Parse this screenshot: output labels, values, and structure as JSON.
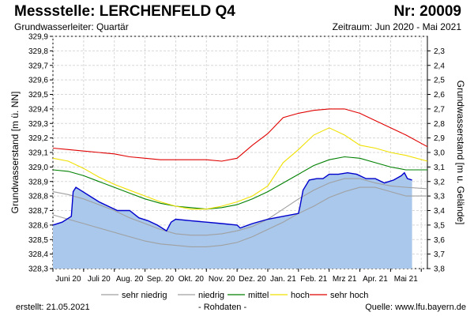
{
  "header": {
    "title": "Messstelle: LERCHENFELD Q4",
    "number": "Nr: 20009",
    "subtitle": "Grundwasserleiter: Quartär",
    "period": "Zeitraum: Jun 2020 - Mai 2021"
  },
  "footer": {
    "created": "erstellt:  21.05.2021",
    "note": "- Rohdaten -",
    "source": "Quelle:  www.lfu.bayern.de"
  },
  "colors": {
    "measured_line": "#0000cc",
    "measured_fill": "#a9c8ec",
    "sehr_niedrig": "#a0a0a0",
    "niedrig": "#a0a0a0",
    "mittel": "#008000",
    "hoch": "#f0e000",
    "sehr_hoch": "#e00000",
    "grid": "#d8d8d8"
  },
  "chart_data": {
    "type": "line",
    "ylabel": "Grundwasserstand [m ü. NN]",
    "ylabel_right": "Grundwasserstand [m u. Gelände]",
    "ylim": [
      328.3,
      329.9
    ],
    "ylim_right": [
      2.2,
      3.8
    ],
    "yticks": [
      "328,3",
      "328,4",
      "328,5",
      "328,6",
      "328,7",
      "328,8",
      "328,9",
      "329,0",
      "329,1",
      "329,2",
      "329,3",
      "329,4",
      "329,5",
      "329,6",
      "329,7",
      "329,8",
      "329,9"
    ],
    "yticks_right": [
      "2,3",
      "2,4",
      "2,5",
      "2,6",
      "2,7",
      "2,8",
      "2,9",
      "3,0",
      "3,1",
      "3,2",
      "3,3",
      "3,4",
      "3,5",
      "3,6",
      "3,7",
      "3,8"
    ],
    "x_range_months": [
      0,
      12.2
    ],
    "x_ticks": [
      {
        "label": "Juni 20",
        "x": 0.5
      },
      {
        "label": "Juli 20",
        "x": 1.5
      },
      {
        "label": "Aug. 20",
        "x": 2.5
      },
      {
        "label": "Sep. 20",
        "x": 3.5
      },
      {
        "label": "Okt. 20",
        "x": 4.5
      },
      {
        "label": "Nov. 20",
        "x": 5.5
      },
      {
        "label": "Dez. 20",
        "x": 6.5
      },
      {
        "label": "Jan. 21",
        "x": 7.5
      },
      {
        "label": "Feb. 21",
        "x": 8.5
      },
      {
        "label": "Mrz 21",
        "x": 9.5
      },
      {
        "label": "Apr. 21",
        "x": 10.5
      },
      {
        "label": "Mai 21",
        "x": 11.5
      }
    ],
    "legend": [
      "sehr niedrig",
      "niedrig",
      "mittel",
      "hoch",
      "sehr hoch"
    ],
    "series": [
      {
        "name": "sehr niedrig",
        "color": "#a0a0a0",
        "points": [
          [
            0,
            328.67
          ],
          [
            0.5,
            328.64
          ],
          [
            1,
            328.61
          ],
          [
            1.5,
            328.58
          ],
          [
            2,
            328.55
          ],
          [
            2.5,
            328.52
          ],
          [
            3,
            328.49
          ],
          [
            3.5,
            328.47
          ],
          [
            4,
            328.46
          ],
          [
            4.5,
            328.45
          ],
          [
            5,
            328.45
          ],
          [
            5.5,
            328.46
          ],
          [
            6,
            328.48
          ],
          [
            6.5,
            328.52
          ],
          [
            7,
            328.57
          ],
          [
            7.5,
            328.62
          ],
          [
            8,
            328.68
          ],
          [
            8.5,
            328.73
          ],
          [
            9,
            328.79
          ],
          [
            9.5,
            328.83
          ],
          [
            10,
            328.86
          ],
          [
            10.5,
            328.86
          ],
          [
            11,
            328.83
          ],
          [
            11.5,
            328.8
          ],
          [
            12.2,
            328.8
          ]
        ]
      },
      {
        "name": "niedrig",
        "color": "#a0a0a0",
        "points": [
          [
            0,
            328.83
          ],
          [
            0.5,
            328.81
          ],
          [
            1,
            328.78
          ],
          [
            1.5,
            328.74
          ],
          [
            2,
            328.7
          ],
          [
            2.5,
            328.65
          ],
          [
            3,
            328.61
          ],
          [
            3.5,
            328.57
          ],
          [
            4,
            328.54
          ],
          [
            4.5,
            328.53
          ],
          [
            5,
            328.53
          ],
          [
            5.5,
            328.54
          ],
          [
            6,
            328.56
          ],
          [
            6.5,
            328.59
          ],
          [
            7,
            328.64
          ],
          [
            7.5,
            328.71
          ],
          [
            8,
            328.78
          ],
          [
            8.5,
            328.84
          ],
          [
            9,
            328.89
          ],
          [
            9.5,
            328.92
          ],
          [
            10,
            328.92
          ],
          [
            10.5,
            328.89
          ],
          [
            11,
            328.87
          ],
          [
            11.5,
            328.86
          ],
          [
            12.2,
            328.85
          ]
        ]
      },
      {
        "name": "mittel",
        "color": "#008000",
        "points": [
          [
            0,
            328.98
          ],
          [
            0.5,
            328.97
          ],
          [
            1,
            328.94
          ],
          [
            1.5,
            328.9
          ],
          [
            2,
            328.86
          ],
          [
            2.5,
            328.82
          ],
          [
            3,
            328.78
          ],
          [
            3.5,
            328.75
          ],
          [
            4,
            328.73
          ],
          [
            4.5,
            328.72
          ],
          [
            5,
            328.71
          ],
          [
            5.5,
            328.72
          ],
          [
            6,
            328.74
          ],
          [
            6.5,
            328.78
          ],
          [
            7,
            328.83
          ],
          [
            7.5,
            328.89
          ],
          [
            8,
            328.95
          ],
          [
            8.5,
            329.01
          ],
          [
            9,
            329.05
          ],
          [
            9.5,
            329.07
          ],
          [
            10,
            329.06
          ],
          [
            10.5,
            329.03
          ],
          [
            11,
            329.0
          ],
          [
            11.5,
            328.98
          ],
          [
            12.2,
            328.98
          ]
        ]
      },
      {
        "name": "hoch",
        "color": "#f0e000",
        "points": [
          [
            0,
            329.06
          ],
          [
            0.5,
            329.04
          ],
          [
            1,
            328.99
          ],
          [
            1.5,
            328.93
          ],
          [
            2,
            328.88
          ],
          [
            2.5,
            328.84
          ],
          [
            3,
            328.8
          ],
          [
            3.5,
            328.76
          ],
          [
            4,
            328.73
          ],
          [
            4.5,
            328.71
          ],
          [
            5,
            328.71
          ],
          [
            5.5,
            328.73
          ],
          [
            6,
            328.76
          ],
          [
            6.5,
            328.8
          ],
          [
            7,
            328.87
          ],
          [
            7.5,
            329.03
          ],
          [
            8,
            329.12
          ],
          [
            8.5,
            329.22
          ],
          [
            9,
            329.27
          ],
          [
            9.5,
            329.22
          ],
          [
            10,
            329.15
          ],
          [
            10.5,
            329.13
          ],
          [
            11,
            329.1
          ],
          [
            11.5,
            329.08
          ],
          [
            12.2,
            329.04
          ]
        ]
      },
      {
        "name": "sehr hoch",
        "color": "#e00000",
        "points": [
          [
            0,
            329.13
          ],
          [
            0.5,
            329.12
          ],
          [
            1,
            329.11
          ],
          [
            1.5,
            329.1
          ],
          [
            2,
            329.09
          ],
          [
            2.5,
            329.07
          ],
          [
            3,
            329.06
          ],
          [
            3.5,
            329.05
          ],
          [
            4,
            329.05
          ],
          [
            4.5,
            329.05
          ],
          [
            5,
            329.05
          ],
          [
            5.5,
            329.04
          ],
          [
            6,
            329.06
          ],
          [
            6.5,
            329.15
          ],
          [
            7,
            329.23
          ],
          [
            7.5,
            329.34
          ],
          [
            8,
            329.37
          ],
          [
            8.5,
            329.39
          ],
          [
            9,
            329.4
          ],
          [
            9.5,
            329.4
          ],
          [
            10,
            329.37
          ],
          [
            10.5,
            329.32
          ],
          [
            11,
            329.27
          ],
          [
            11.5,
            329.22
          ],
          [
            12.2,
            329.14
          ]
        ]
      },
      {
        "name": "Messwerte",
        "color": "#0000cc",
        "points": [
          [
            0,
            328.6
          ],
          [
            0.3,
            328.62
          ],
          [
            0.6,
            328.66
          ],
          [
            0.66,
            328.83
          ],
          [
            0.75,
            328.86
          ],
          [
            0.9,
            328.84
          ],
          [
            1.2,
            328.8
          ],
          [
            1.5,
            328.76
          ],
          [
            1.8,
            328.73
          ],
          [
            2.1,
            328.7
          ],
          [
            2.5,
            328.7
          ],
          [
            2.8,
            328.65
          ],
          [
            3.1,
            328.63
          ],
          [
            3.4,
            328.6
          ],
          [
            3.7,
            328.56
          ],
          [
            3.85,
            328.62
          ],
          [
            4.0,
            328.64
          ],
          [
            4.5,
            328.63
          ],
          [
            5.0,
            328.62
          ],
          [
            5.5,
            328.61
          ],
          [
            6.0,
            328.6
          ],
          [
            6.1,
            328.58
          ],
          [
            6.5,
            328.61
          ],
          [
            7.0,
            328.64
          ],
          [
            7.5,
            328.66
          ],
          [
            8.0,
            328.68
          ],
          [
            8.05,
            328.73
          ],
          [
            8.15,
            328.84
          ],
          [
            8.35,
            328.91
          ],
          [
            8.6,
            328.92
          ],
          [
            8.8,
            328.92
          ],
          [
            9.0,
            328.95
          ],
          [
            9.3,
            328.95
          ],
          [
            9.6,
            328.96
          ],
          [
            9.9,
            328.95
          ],
          [
            10.2,
            328.92
          ],
          [
            10.5,
            328.92
          ],
          [
            10.8,
            328.89
          ],
          [
            11.1,
            328.91
          ],
          [
            11.35,
            328.94
          ],
          [
            11.45,
            328.96
          ],
          [
            11.55,
            328.92
          ],
          [
            11.7,
            328.91
          ]
        ]
      }
    ]
  }
}
